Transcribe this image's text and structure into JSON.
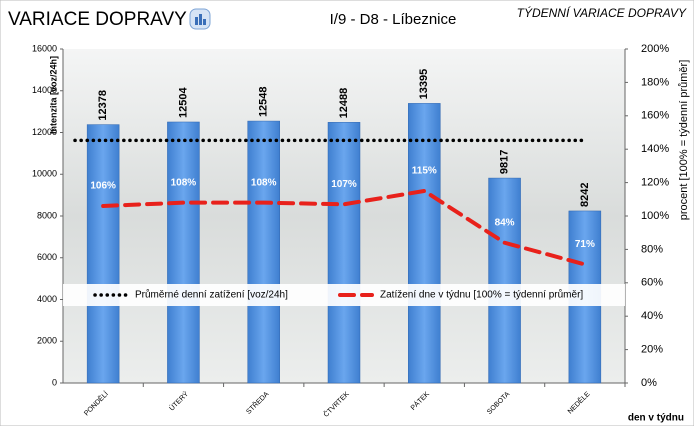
{
  "chart_data": {
    "type": "bar",
    "title": "VARIACE DOPRAVY",
    "subtitle": "I/9 - D8 - Líbeznice",
    "header_right": "TÝDENNÍ VARIACE DOPRAVY",
    "y_label": "intenzita [voz/24h]",
    "y2_label": "procent [100% = týdenní průměr]",
    "x_label": "den v týdnu",
    "categories": [
      "PONDĚLÍ",
      "ÚTERÝ",
      "STŘEDA",
      "ČTVRTEK",
      "PÁTEK",
      "SOBOTA",
      "NEDĚLE"
    ],
    "values": [
      12378,
      12504,
      12548,
      12488,
      13395,
      9817,
      8242
    ],
    "color": "#4f8fdc",
    "series": [
      {
        "name": "Průměrné denní zatížení [voz/24h]",
        "color": "#000000",
        "style": "dotted",
        "values": [
          11625,
          11625,
          11625,
          11625,
          11625,
          11625,
          11625
        ]
      },
      {
        "name": "Zatížení dne v týdnu [100% = týdenní průměr]",
        "color": "#e8211b",
        "style": "dashed",
        "axis": "y2",
        "values": [
          106,
          108,
          108,
          107,
          115,
          84,
          71
        ],
        "value_labels": [
          "106%",
          "108%",
          "108%",
          "107%",
          "115%",
          "84%",
          "71%"
        ]
      }
    ],
    "ylim": [
      0,
      16000
    ],
    "yticks": [
      0,
      2000,
      4000,
      6000,
      8000,
      10000,
      12000,
      14000,
      16000
    ],
    "y2lim": [
      0,
      200
    ],
    "y2ticks": [
      {
        "value": 0,
        "label": "0%"
      },
      {
        "value": 20,
        "label": "20%"
      },
      {
        "value": 40,
        "label": "40%"
      },
      {
        "value": 60,
        "label": "60%"
      },
      {
        "value": 80,
        "label": "80%"
      },
      {
        "value": 100,
        "label": "100%"
      },
      {
        "value": 120,
        "label": "120%"
      },
      {
        "value": 140,
        "label": "140%"
      },
      {
        "value": 160,
        "label": "160%"
      },
      {
        "value": 180,
        "label": "180%"
      },
      {
        "value": 200,
        "label": "200%"
      }
    ]
  }
}
